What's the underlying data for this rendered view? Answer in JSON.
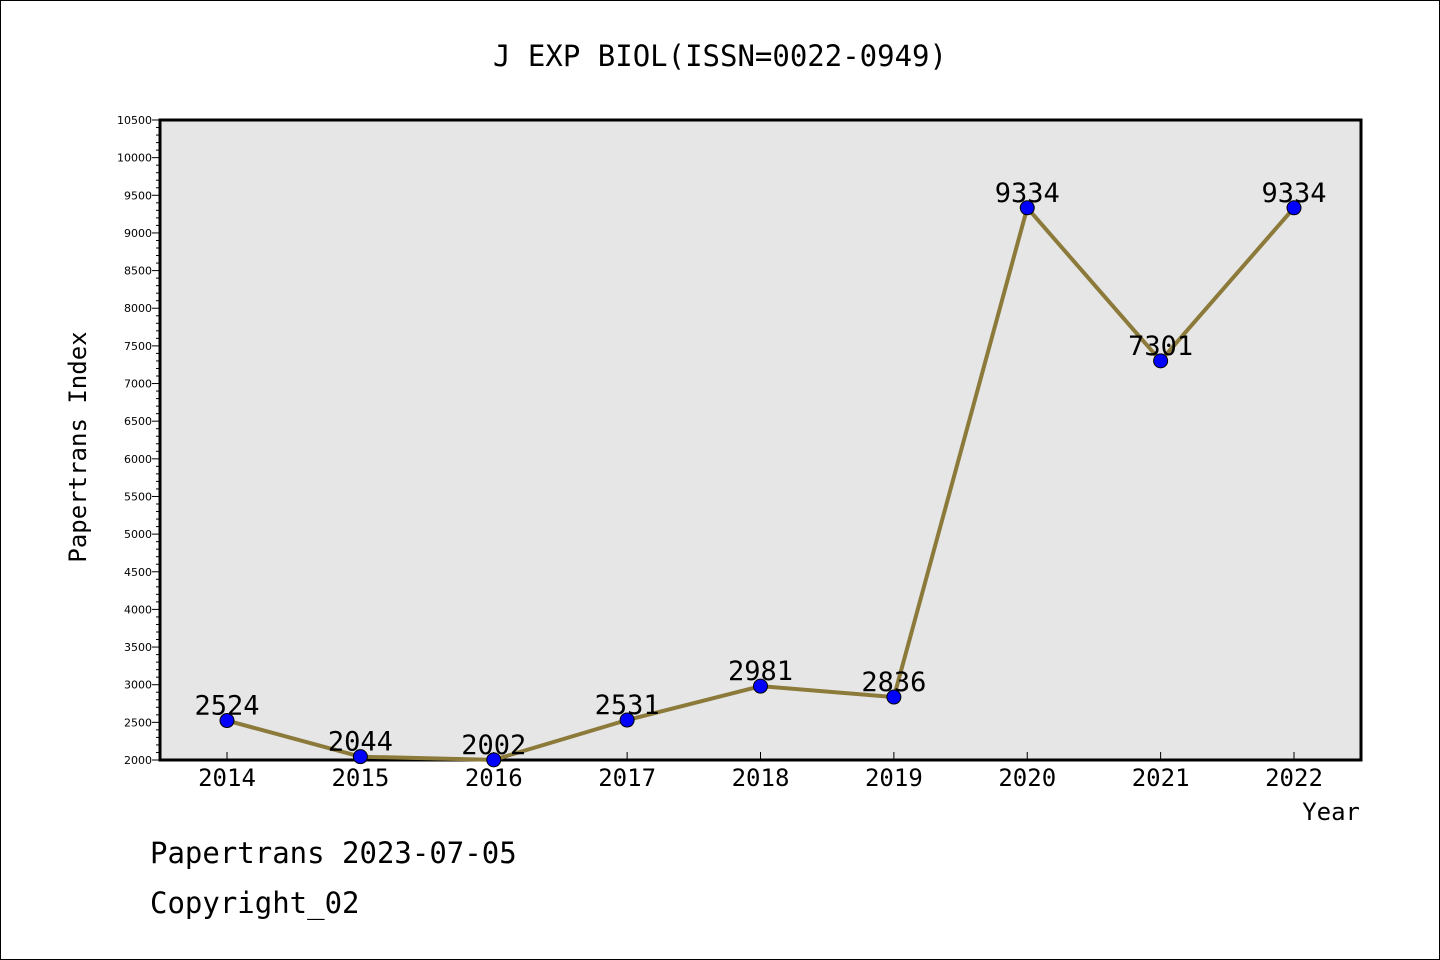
{
  "chart_data": {
    "type": "line",
    "title": "J EXP BIOL(ISSN=0022-0949)",
    "xlabel": "Year",
    "ylabel": "Papertrans Index",
    "categories": [
      "2014",
      "2015",
      "2016",
      "2017",
      "2018",
      "2019",
      "2020",
      "2021",
      "2022"
    ],
    "series": [
      {
        "values": [
          2524,
          2044,
          2002,
          2531,
          2981,
          2836,
          9334,
          7301,
          9334
        ]
      }
    ],
    "data_labels": [
      "2524",
      "2044",
      "2002",
      "2531",
      "2981",
      "2836",
      "9334",
      "7301",
      "9334"
    ],
    "ylim": [
      2000,
      10500
    ],
    "y_ticks": [
      2000,
      2500,
      3000,
      3500,
      4000,
      4500,
      5000,
      5500,
      6000,
      6500,
      7000,
      7500,
      8000,
      8500,
      9000,
      9500,
      10000,
      10500
    ],
    "y_tick_labels": [
      "2000",
      "2500",
      "3000",
      "3500",
      "4000",
      "4500",
      "5000",
      "5500",
      "6000",
      "6500",
      "7000",
      "7500",
      "8000",
      "8500",
      "9000",
      "9500",
      "10000",
      "10500"
    ],
    "grid": false,
    "legend": "none",
    "colors": {
      "plot_background": "#e6e6e6",
      "line": "#8c7a3a",
      "marker": "#0000ff"
    }
  },
  "footer": {
    "line1": "Papertrans 2023-07-05",
    "line2": "Copyright_02"
  }
}
